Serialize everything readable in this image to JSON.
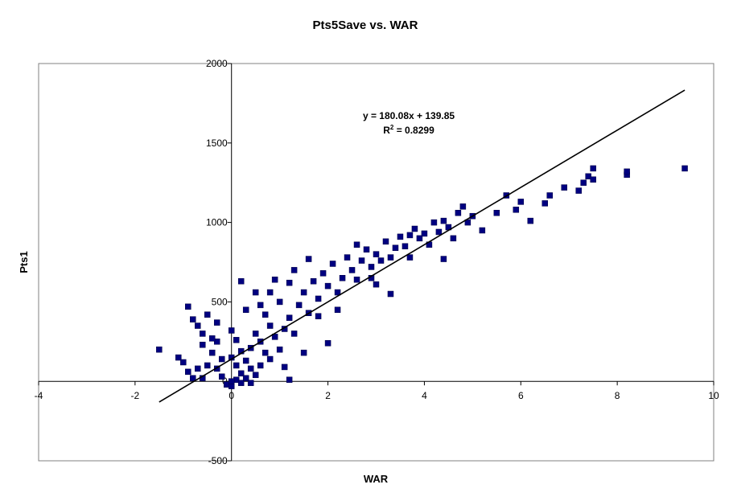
{
  "chart_data": {
    "type": "scatter",
    "title": "Pts5Save vs. WAR",
    "xlabel": "WAR",
    "ylabel": "Pts1",
    "xlim": [
      -4,
      10
    ],
    "ylim": [
      -500,
      2000
    ],
    "x_ticks": [
      "-4",
      "-2",
      "0",
      "2",
      "4",
      "6",
      "8",
      "10"
    ],
    "y_ticks": [
      "-500",
      "0",
      "500",
      "1000",
      "1500",
      "2000"
    ],
    "marker_color": "#000080",
    "trendline": {
      "slope": 180.08,
      "intercept": 139.85,
      "x_range": [
        -1.5,
        9.4
      ],
      "equation": "y = 180.08x + 139.85",
      "r2_prefix": "R",
      "r2_exp": "2",
      "r2_value": " = 0.8299"
    },
    "series": [
      {
        "points": [
          [
            -1.5,
            200
          ],
          [
            -1.1,
            150
          ],
          [
            -0.9,
            470
          ],
          [
            -0.8,
            390
          ],
          [
            -0.7,
            350
          ],
          [
            -0.6,
            300
          ],
          [
            -0.9,
            60
          ],
          [
            -0.8,
            20
          ],
          [
            -0.5,
            420
          ],
          [
            -1.0,
            120
          ],
          [
            -0.6,
            230
          ],
          [
            -0.4,
            180
          ],
          [
            -0.3,
            80
          ],
          [
            -0.2,
            30
          ],
          [
            -0.1,
            -20
          ],
          [
            0.0,
            -30
          ],
          [
            0.1,
            10
          ],
          [
            0.2,
            -10
          ],
          [
            -0.5,
            100
          ],
          [
            -0.3,
            250
          ],
          [
            0.0,
            150
          ],
          [
            0.1,
            100
          ],
          [
            0.2,
            50
          ],
          [
            0.3,
            20
          ],
          [
            -0.2,
            140
          ],
          [
            0.0,
            320
          ],
          [
            0.1,
            260
          ],
          [
            0.2,
            190
          ],
          [
            0.3,
            130
          ],
          [
            0.4,
            80
          ],
          [
            0.5,
            40
          ],
          [
            0.6,
            100
          ],
          [
            0.4,
            210
          ],
          [
            0.5,
            300
          ],
          [
            0.6,
            250
          ],
          [
            0.7,
            180
          ],
          [
            0.8,
            350
          ],
          [
            0.7,
            420
          ],
          [
            0.9,
            280
          ],
          [
            1.0,
            200
          ],
          [
            1.1,
            330
          ],
          [
            1.2,
            400
          ],
          [
            1.0,
            500
          ],
          [
            0.8,
            560
          ],
          [
            1.2,
            620
          ],
          [
            1.4,
            480
          ],
          [
            1.3,
            300
          ],
          [
            1.5,
            560
          ],
          [
            1.6,
            430
          ],
          [
            1.7,
            630
          ],
          [
            1.8,
            520
          ],
          [
            1.9,
            680
          ],
          [
            2.0,
            600
          ],
          [
            2.1,
            740
          ],
          [
            2.2,
            560
          ],
          [
            2.3,
            650
          ],
          [
            2.4,
            780
          ],
          [
            2.5,
            700
          ],
          [
            2.6,
            640
          ],
          [
            2.7,
            760
          ],
          [
            2.8,
            830
          ],
          [
            2.9,
            720
          ],
          [
            3.0,
            800
          ],
          [
            3.1,
            760
          ],
          [
            3.2,
            880
          ],
          [
            3.3,
            780
          ],
          [
            3.4,
            840
          ],
          [
            3.5,
            910
          ],
          [
            3.6,
            850
          ],
          [
            3.7,
            920
          ],
          [
            3.8,
            960
          ],
          [
            3.9,
            900
          ],
          [
            4.0,
            930
          ],
          [
            4.2,
            1000
          ],
          [
            4.3,
            940
          ],
          [
            4.5,
            970
          ],
          [
            4.4,
            1010
          ],
          [
            4.6,
            900
          ],
          [
            4.7,
            1060
          ],
          [
            4.8,
            1100
          ],
          [
            4.9,
            1000
          ],
          [
            5.0,
            1040
          ],
          [
            5.2,
            950
          ],
          [
            5.5,
            1060
          ],
          [
            5.7,
            1170
          ],
          [
            5.9,
            1080
          ],
          [
            6.0,
            1130
          ],
          [
            6.2,
            1010
          ],
          [
            6.5,
            1120
          ],
          [
            6.6,
            1170
          ],
          [
            6.9,
            1220
          ],
          [
            7.2,
            1200
          ],
          [
            7.3,
            1250
          ],
          [
            7.4,
            1290
          ],
          [
            7.5,
            1340
          ],
          [
            7.5,
            1270
          ],
          [
            8.2,
            1300
          ],
          [
            8.2,
            1320
          ],
          [
            9.4,
            1340
          ],
          [
            1.2,
            10
          ],
          [
            3.3,
            550
          ],
          [
            4.4,
            770
          ],
          [
            2.0,
            240
          ],
          [
            1.5,
            180
          ],
          [
            0.2,
            630
          ],
          [
            0.6,
            480
          ],
          [
            2.6,
            860
          ],
          [
            1.8,
            410
          ],
          [
            -0.3,
            370
          ],
          [
            -0.7,
            80
          ],
          [
            0.9,
            640
          ],
          [
            1.3,
            700
          ],
          [
            2.2,
            450
          ],
          [
            3.0,
            610
          ],
          [
            0.0,
            0
          ],
          [
            0.3,
            450
          ],
          [
            -0.4,
            270
          ],
          [
            0.4,
            -10
          ],
          [
            1.6,
            770
          ],
          [
            0.5,
            560
          ],
          [
            2.9,
            650
          ],
          [
            4.1,
            860
          ],
          [
            3.7,
            780
          ],
          [
            1.1,
            90
          ],
          [
            0.8,
            140
          ],
          [
            -0.6,
            20
          ]
        ]
      }
    ]
  }
}
